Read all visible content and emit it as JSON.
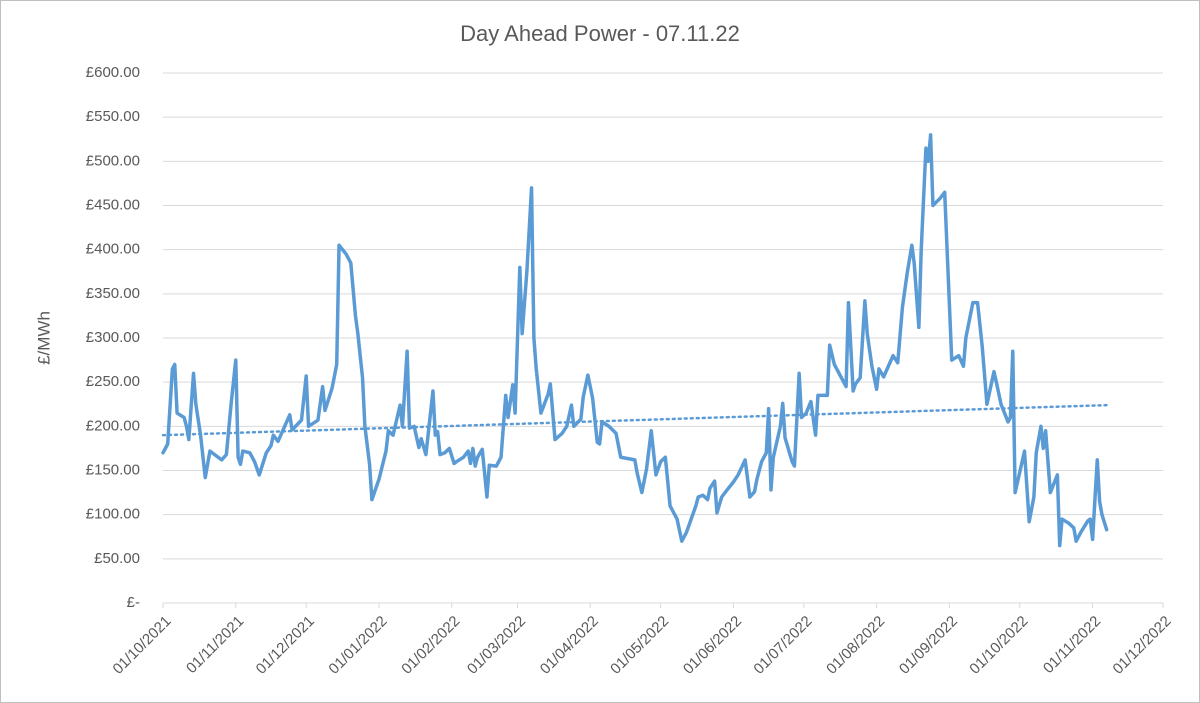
{
  "chart_data": {
    "type": "line",
    "title": "Day Ahead Power - 07.11.22",
    "y_label": "£/MWh",
    "color": "#5b9bd5",
    "grid": true,
    "x": [
      "01/10/2021",
      "03/10/2021",
      "05/10/2021",
      "06/10/2021",
      "07/10/2021",
      "10/10/2021",
      "11/10/2021",
      "12/10/2021",
      "14/10/2021",
      "15/10/2021",
      "17/10/2021",
      "19/10/2021",
      "21/10/2021",
      "23/10/2021",
      "26/10/2021",
      "28/10/2021",
      "30/10/2021",
      "01/11/2021",
      "02/11/2021",
      "03/11/2021",
      "04/11/2021",
      "07/11/2021",
      "09/11/2021",
      "11/11/2021",
      "14/11/2021",
      "16/11/2021",
      "17/11/2021",
      "19/11/2021",
      "21/11/2021",
      "24/11/2021",
      "25/11/2021",
      "29/11/2021",
      "01/12/2021",
      "02/12/2021",
      "06/12/2021",
      "08/12/2021",
      "09/12/2021",
      "12/12/2021",
      "14/12/2021",
      "15/12/2021",
      "18/12/2021",
      "20/12/2021",
      "22/12/2021",
      "23/12/2021",
      "25/12/2021",
      "26/12/2021",
      "28/12/2021",
      "29/12/2021",
      "01/01/2022",
      "04/01/2022",
      "05/01/2022",
      "07/01/2022",
      "10/01/2022",
      "11/01/2022",
      "13/01/2022",
      "14/01/2022",
      "16/01/2022",
      "18/01/2022",
      "19/01/2022",
      "21/01/2022",
      "24/01/2022",
      "25/01/2022",
      "26/01/2022",
      "27/01/2022",
      "29/01/2022",
      "31/01/2022",
      "02/02/2022",
      "03/02/2022",
      "06/02/2022",
      "08/02/2022",
      "09/02/2022",
      "10/02/2022",
      "11/02/2022",
      "12/02/2022",
      "14/02/2022",
      "16/02/2022",
      "17/02/2022",
      "20/02/2022",
      "22/02/2022",
      "24/02/2022",
      "25/02/2022",
      "27/02/2022",
      "28/02/2022",
      "02/03/2022",
      "03/03/2022",
      "05/03/2022",
      "07/03/2022",
      "08/03/2022",
      "09/03/2022",
      "11/03/2022",
      "14/03/2022",
      "15/03/2022",
      "17/03/2022",
      "20/03/2022",
      "22/03/2022",
      "24/03/2022",
      "25/03/2022",
      "28/03/2022",
      "29/03/2022",
      "31/03/2022",
      "02/04/2022",
      "04/04/2022",
      "05/04/2022",
      "06/04/2022",
      "09/04/2022",
      "12/04/2022",
      "14/04/2022",
      "18/04/2022",
      "20/04/2022",
      "21/04/2022",
      "23/04/2022",
      "25/04/2022",
      "27/04/2022",
      "29/04/2022",
      "01/05/2022",
      "03/05/2022",
      "04/05/2022",
      "05/05/2022",
      "08/05/2022",
      "10/05/2022",
      "12/05/2022",
      "16/05/2022",
      "17/05/2022",
      "19/05/2022",
      "21/05/2022",
      "22/05/2022",
      "24/05/2022",
      "25/05/2022",
      "27/05/2022",
      "29/05/2022",
      "01/06/2022",
      "03/06/2022",
      "06/06/2022",
      "08/06/2022",
      "10/06/2022",
      "11/06/2022",
      "13/06/2022",
      "15/06/2022",
      "16/06/2022",
      "17/06/2022",
      "18/06/2022",
      "21/06/2022",
      "22/06/2022",
      "23/06/2022",
      "26/06/2022",
      "27/06/2022",
      "29/06/2022",
      "30/06/2022",
      "02/07/2022",
      "04/07/2022",
      "06/07/2022",
      "07/07/2022",
      "11/07/2022",
      "12/07/2022",
      "14/07/2022",
      "18/07/2022",
      "19/07/2022",
      "20/07/2022",
      "22/07/2022",
      "23/07/2022",
      "25/07/2022",
      "27/07/2022",
      "28/07/2022",
      "30/07/2022",
      "01/08/2022",
      "02/08/2022",
      "04/08/2022",
      "06/08/2022",
      "08/08/2022",
      "10/08/2022",
      "12/08/2022",
      "14/08/2022",
      "16/08/2022",
      "17/08/2022",
      "19/08/2022",
      "20/08/2022",
      "22/08/2022",
      "23/08/2022",
      "24/08/2022",
      "25/08/2022",
      "28/08/2022",
      "30/08/2022",
      "02/09/2022",
      "05/09/2022",
      "07/09/2022",
      "08/09/2022",
      "11/09/2022",
      "13/09/2022",
      "15/09/2022",
      "17/09/2022",
      "20/09/2022",
      "21/09/2022",
      "23/09/2022",
      "26/09/2022",
      "27/09/2022",
      "28/09/2022",
      "29/09/2022",
      "02/10/2022",
      "03/10/2022",
      "05/10/2022",
      "07/10/2022",
      "08/10/2022",
      "10/10/2022",
      "11/10/2022",
      "12/10/2022",
      "14/10/2022",
      "17/10/2022",
      "18/10/2022",
      "19/10/2022",
      "22/10/2022",
      "24/10/2022",
      "25/10/2022",
      "27/10/2022",
      "30/10/2022",
      "31/10/2022",
      "01/11/2022",
      "03/11/2022",
      "04/11/2022",
      "05/11/2022",
      "07/11/2022"
    ],
    "values": [
      170,
      180,
      265,
      270,
      215,
      210,
      200,
      185,
      260,
      225,
      190,
      142,
      172,
      168,
      162,
      168,
      225,
      275,
      165,
      157,
      172,
      170,
      160,
      145,
      170,
      178,
      190,
      183,
      195,
      213,
      196,
      207,
      257,
      200,
      207,
      245,
      218,
      243,
      270,
      405,
      395,
      385,
      325,
      305,
      255,
      200,
      157,
      117,
      140,
      172,
      195,
      190,
      224,
      200,
      285,
      198,
      200,
      176,
      186,
      168,
      240,
      190,
      194,
      168,
      170,
      175,
      158,
      160,
      165,
      172,
      158,
      175,
      155,
      165,
      174,
      120,
      156,
      155,
      165,
      235,
      210,
      247,
      215,
      380,
      305,
      375,
      470,
      300,
      265,
      215,
      236,
      248,
      185,
      192,
      200,
      224,
      200,
      208,
      233,
      258,
      232,
      182,
      180,
      205,
      200,
      192,
      165,
      163,
      162,
      147,
      125,
      152,
      195,
      145,
      160,
      165,
      138,
      110,
      95,
      70,
      80,
      110,
      120,
      122,
      117,
      130,
      138,
      102,
      120,
      127,
      137,
      145,
      162,
      120,
      126,
      140,
      160,
      170,
      220,
      128,
      165,
      200,
      226,
      187,
      160,
      155,
      260,
      210,
      215,
      228,
      190,
      235,
      235,
      292,
      270,
      250,
      245,
      340,
      240,
      248,
      255,
      342,
      305,
      268,
      242,
      265,
      256,
      268,
      280,
      272,
      335,
      373,
      405,
      385,
      312,
      400,
      515,
      500,
      530,
      450,
      458,
      465,
      275,
      280,
      268,
      300,
      340,
      340,
      290,
      225,
      262,
      250,
      225,
      205,
      210,
      285,
      125,
      160,
      172,
      92,
      120,
      170,
      200,
      175,
      195,
      125,
      145,
      65,
      95,
      90,
      85,
      70,
      80,
      93,
      95,
      72,
      162,
      115,
      100,
      83
    ],
    "trendline": {
      "x": [
        "01/10/2021",
        "07/11/2022"
      ],
      "values": [
        190,
        224
      ]
    },
    "xlim": [
      "01/10/2021",
      "01/12/2022"
    ],
    "xticks": [
      "01/10/2021",
      "01/11/2021",
      "01/12/2021",
      "01/01/2022",
      "01/02/2022",
      "01/03/2022",
      "01/04/2022",
      "01/05/2022",
      "01/06/2022",
      "01/07/2022",
      "01/08/2022",
      "01/09/2022",
      "01/10/2022",
      "01/11/2022",
      "01/12/2022"
    ],
    "ylim": [
      0,
      600
    ],
    "yticks": [
      {
        "value": 0,
        "label": "£-"
      },
      {
        "value": 50,
        "label": "£50.00"
      },
      {
        "value": 100,
        "label": "£100.00"
      },
      {
        "value": 150,
        "label": "£150.00"
      },
      {
        "value": 200,
        "label": "£200.00"
      },
      {
        "value": 250,
        "label": "£250.00"
      },
      {
        "value": 300,
        "label": "£300.00"
      },
      {
        "value": 350,
        "label": "£350.00"
      },
      {
        "value": 400,
        "label": "£400.00"
      },
      {
        "value": 450,
        "label": "£450.00"
      },
      {
        "value": 500,
        "label": "£500.00"
      },
      {
        "value": 550,
        "label": "£550.00"
      },
      {
        "value": 600,
        "label": "£600.00"
      }
    ]
  }
}
